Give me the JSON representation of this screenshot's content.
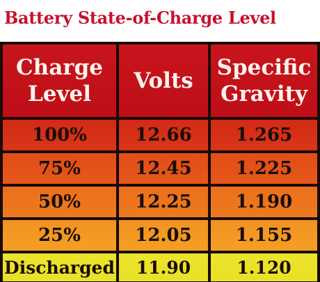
{
  "title": "Battery State-of-Charge Level",
  "table": {
    "headers": {
      "charge_level": [
        "Charge",
        "Level"
      ],
      "volts": "Volts",
      "specific_gravity": [
        "Specific",
        "Gravity"
      ]
    },
    "rows": [
      {
        "charge_level": "100%",
        "volts": "12.66",
        "specific_gravity": "1.265"
      },
      {
        "charge_level": "75%",
        "volts": "12.45",
        "specific_gravity": "1.225"
      },
      {
        "charge_level": "50%",
        "volts": "12.25",
        "specific_gravity": "1.190"
      },
      {
        "charge_level": "25%",
        "volts": "12.05",
        "specific_gravity": "1.155"
      },
      {
        "charge_level": "Discharged",
        "volts": "11.90",
        "specific_gravity": "1.120"
      }
    ]
  },
  "colors": {
    "title": "#c8102e",
    "header_bg": "#c8101a",
    "row_100": "#d42a16",
    "row_75": "#e24d17",
    "row_50": "#eb6f1c",
    "row_25": "#f29221",
    "row_discharged": "#ece42a",
    "grid_lines": "#1a0a05"
  }
}
